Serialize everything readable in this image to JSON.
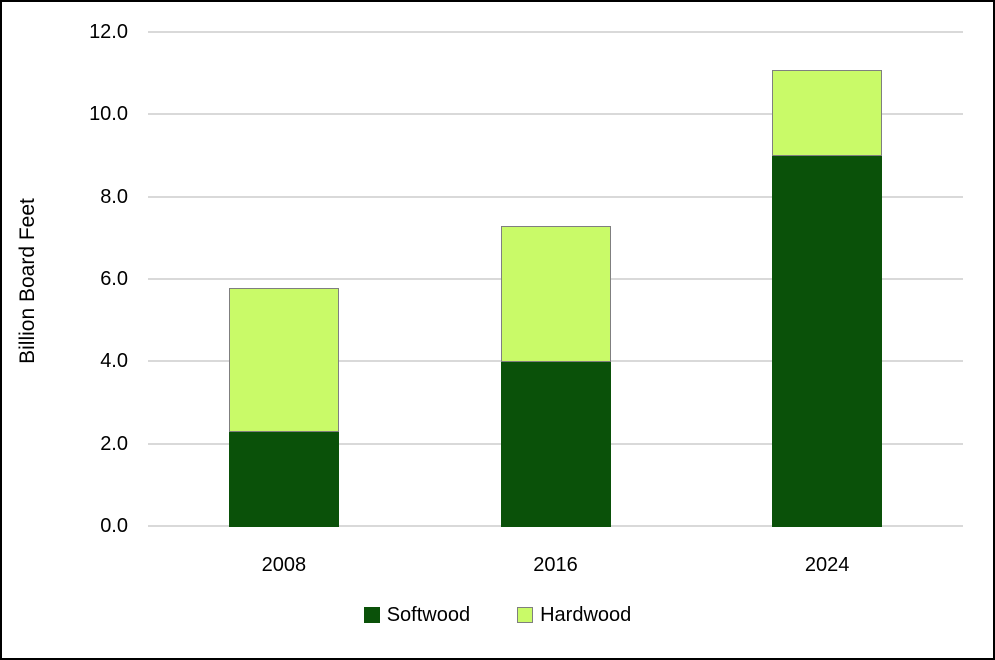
{
  "chart_data": {
    "type": "bar",
    "stacked": true,
    "title": "",
    "categories": [
      "2008",
      "2016",
      "2024"
    ],
    "series": [
      {
        "name": "Softwood",
        "values": [
          2.3,
          4.0,
          9.0
        ],
        "color": "#0a5109",
        "border_color": "#0a5109"
      },
      {
        "name": "Hardwood",
        "values": [
          3.5,
          3.3,
          2.1
        ],
        "color": "#c9fa68",
        "border_color": "#7f7f7f"
      }
    ],
    "stack_totals": [
      5.8,
      7.3,
      11.1
    ],
    "xlabel": "",
    "ylabel": "Billion Board Feet",
    "ylim": [
      0,
      12
    ],
    "ytick_step": 2,
    "ytick_labels": [
      "0.0",
      "2.0",
      "4.0",
      "6.0",
      "8.0",
      "10.0",
      "12.0"
    ],
    "grid": "horizontal",
    "gridline_color": "#d9d9d9",
    "legend_position": "bottom",
    "text_color": "#000000",
    "frame_border_color": "#000000",
    "background_color": "#ffffff"
  }
}
